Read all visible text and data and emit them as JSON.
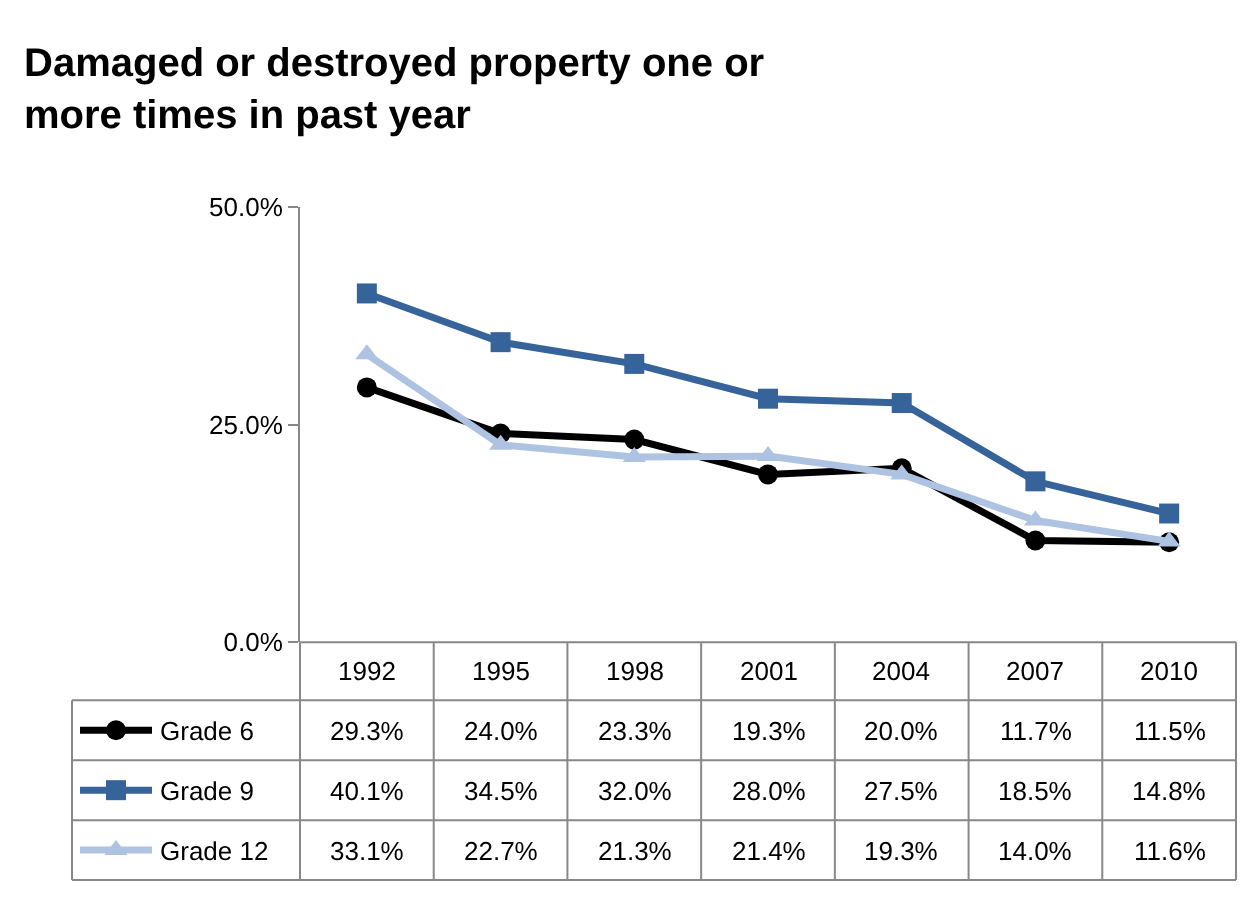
{
  "chart_data": {
    "type": "line",
    "title": "Damaged or destroyed property one or more times in past year",
    "categories": [
      "1992",
      "1995",
      "1998",
      "2001",
      "2004",
      "2007",
      "2010"
    ],
    "series": [
      {
        "name": "Grade 6",
        "color": "#000000",
        "marker": "circle",
        "values": [
          29.3,
          24.0,
          23.3,
          19.3,
          20.0,
          11.7,
          11.5
        ],
        "value_labels": [
          "29.3%",
          "24.0%",
          "23.3%",
          "19.3%",
          "20.0%",
          "11.7%",
          "11.5%"
        ]
      },
      {
        "name": "Grade 9",
        "color": "#36639a",
        "marker": "square",
        "values": [
          40.1,
          34.5,
          32.0,
          28.0,
          27.5,
          18.5,
          14.8
        ],
        "value_labels": [
          "40.1%",
          "34.5%",
          "32.0%",
          "28.0%",
          "27.5%",
          "18.5%",
          "14.8%"
        ]
      },
      {
        "name": "Grade 12",
        "color": "#aec3e2",
        "marker": "triangle",
        "values": [
          33.1,
          22.7,
          21.3,
          21.4,
          19.3,
          14.0,
          11.6
        ],
        "value_labels": [
          "33.1%",
          "22.7%",
          "21.3%",
          "21.4%",
          "19.3%",
          "14.0%",
          "11.6%"
        ]
      }
    ],
    "ylim": [
      0,
      50
    ],
    "yticks": [
      {
        "value": 0,
        "label": "0.0%"
      },
      {
        "value": 25,
        "label": "25.0%"
      },
      {
        "value": 50,
        "label": "50.0%"
      }
    ],
    "grid": false,
    "legend": "bottom",
    "line_style": "solid"
  }
}
